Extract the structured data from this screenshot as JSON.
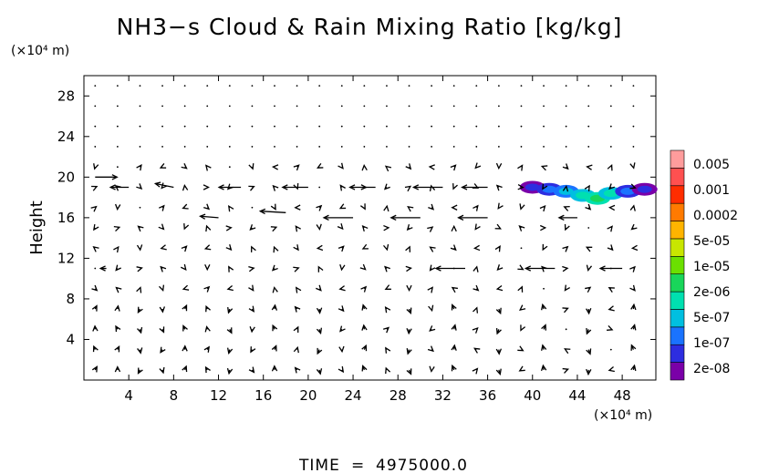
{
  "chart_data": {
    "type": "heatmap",
    "title": "NH3−s Cloud & Rain Mixing Ratio [kg/kg]",
    "ylabel": "Height",
    "x_unit": "(×10⁴ m)",
    "y_unit": "(×10⁴ m)",
    "xlim": [
      0,
      51
    ],
    "ylim": [
      0,
      30
    ],
    "x_ticks": [
      "4",
      "8",
      "12",
      "16",
      "20",
      "24",
      "28",
      "32",
      "36",
      "40",
      "44",
      "48"
    ],
    "y_ticks": [
      "4",
      "8",
      "12",
      "16",
      "20",
      "24",
      "28"
    ],
    "x_tick_values": [
      4,
      8,
      12,
      16,
      20,
      24,
      28,
      32,
      36,
      40,
      44,
      48
    ],
    "y_tick_values": [
      4,
      8,
      12,
      16,
      20,
      24,
      28
    ],
    "grid": false,
    "colorbar": {
      "position": "right",
      "labels": [
        "0.005",
        "0.001",
        "0.0002",
        "5e-05",
        "1e-05",
        "2e-06",
        "5e-07",
        "1e-07",
        "2e-08"
      ],
      "colors": [
        "#7a00a8",
        "#2d2de0",
        "#1a73ff",
        "#00bfe0",
        "#00e0b0",
        "#19d65a",
        "#6be000",
        "#c8e600",
        "#ffb400",
        "#ff7a00",
        "#ff2d00",
        "#ff5050",
        "#ff9c9c"
      ]
    },
    "field_patches": [
      {
        "x": 40.0,
        "y": 19.0,
        "level": 1
      },
      {
        "x": 41.5,
        "y": 18.8,
        "level": 2
      },
      {
        "x": 43.0,
        "y": 18.6,
        "level": 3
      },
      {
        "x": 44.5,
        "y": 18.2,
        "level": 4
      },
      {
        "x": 45.8,
        "y": 17.9,
        "level": 5
      },
      {
        "x": 47.0,
        "y": 18.4,
        "level": 4
      },
      {
        "x": 48.5,
        "y": 18.6,
        "level": 2
      },
      {
        "x": 50.0,
        "y": 18.8,
        "level": 1
      }
    ],
    "wind_vectors": [
      {
        "x": 1.0,
        "y": 20.0,
        "u": 3.0,
        "v": 0.0
      },
      {
        "x": 4.0,
        "y": 19.0,
        "u": -2.5,
        "v": 0.0
      },
      {
        "x": 8.0,
        "y": 19.0,
        "u": -2.5,
        "v": 0.5
      },
      {
        "x": 14.0,
        "y": 19.0,
        "u": -3.0,
        "v": 0.0
      },
      {
        "x": 20.0,
        "y": 19.0,
        "u": -3.5,
        "v": 0.0
      },
      {
        "x": 26.0,
        "y": 19.0,
        "u": -3.5,
        "v": 0.0
      },
      {
        "x": 32.0,
        "y": 19.0,
        "u": -4.0,
        "v": 0.0
      },
      {
        "x": 36.0,
        "y": 19.0,
        "u": -3.5,
        "v": 0.0
      },
      {
        "x": 12.0,
        "y": 16.0,
        "u": -2.5,
        "v": 0.2
      },
      {
        "x": 18.0,
        "y": 16.5,
        "u": -3.5,
        "v": 0.2
      },
      {
        "x": 24.0,
        "y": 16.0,
        "u": -4.0,
        "v": 0.0
      },
      {
        "x": 30.0,
        "y": 16.0,
        "u": -4.0,
        "v": 0.0
      },
      {
        "x": 36.0,
        "y": 16.0,
        "u": -4.0,
        "v": 0.0
      },
      {
        "x": 44.0,
        "y": 16.0,
        "u": -2.5,
        "v": 0.0
      },
      {
        "x": 34.0,
        "y": 11.0,
        "u": -4.0,
        "v": 0.0
      },
      {
        "x": 42.0,
        "y": 11.0,
        "u": -4.0,
        "v": 0.0
      },
      {
        "x": 48.0,
        "y": 11.0,
        "u": -3.0,
        "v": 0.0
      },
      {
        "x": 2.0,
        "y": 11.0,
        "u": -0.8,
        "v": 0.0
      }
    ]
  },
  "footer": {
    "time_label": "TIME",
    "time_eq": "=",
    "time_value": "4975000.0"
  }
}
